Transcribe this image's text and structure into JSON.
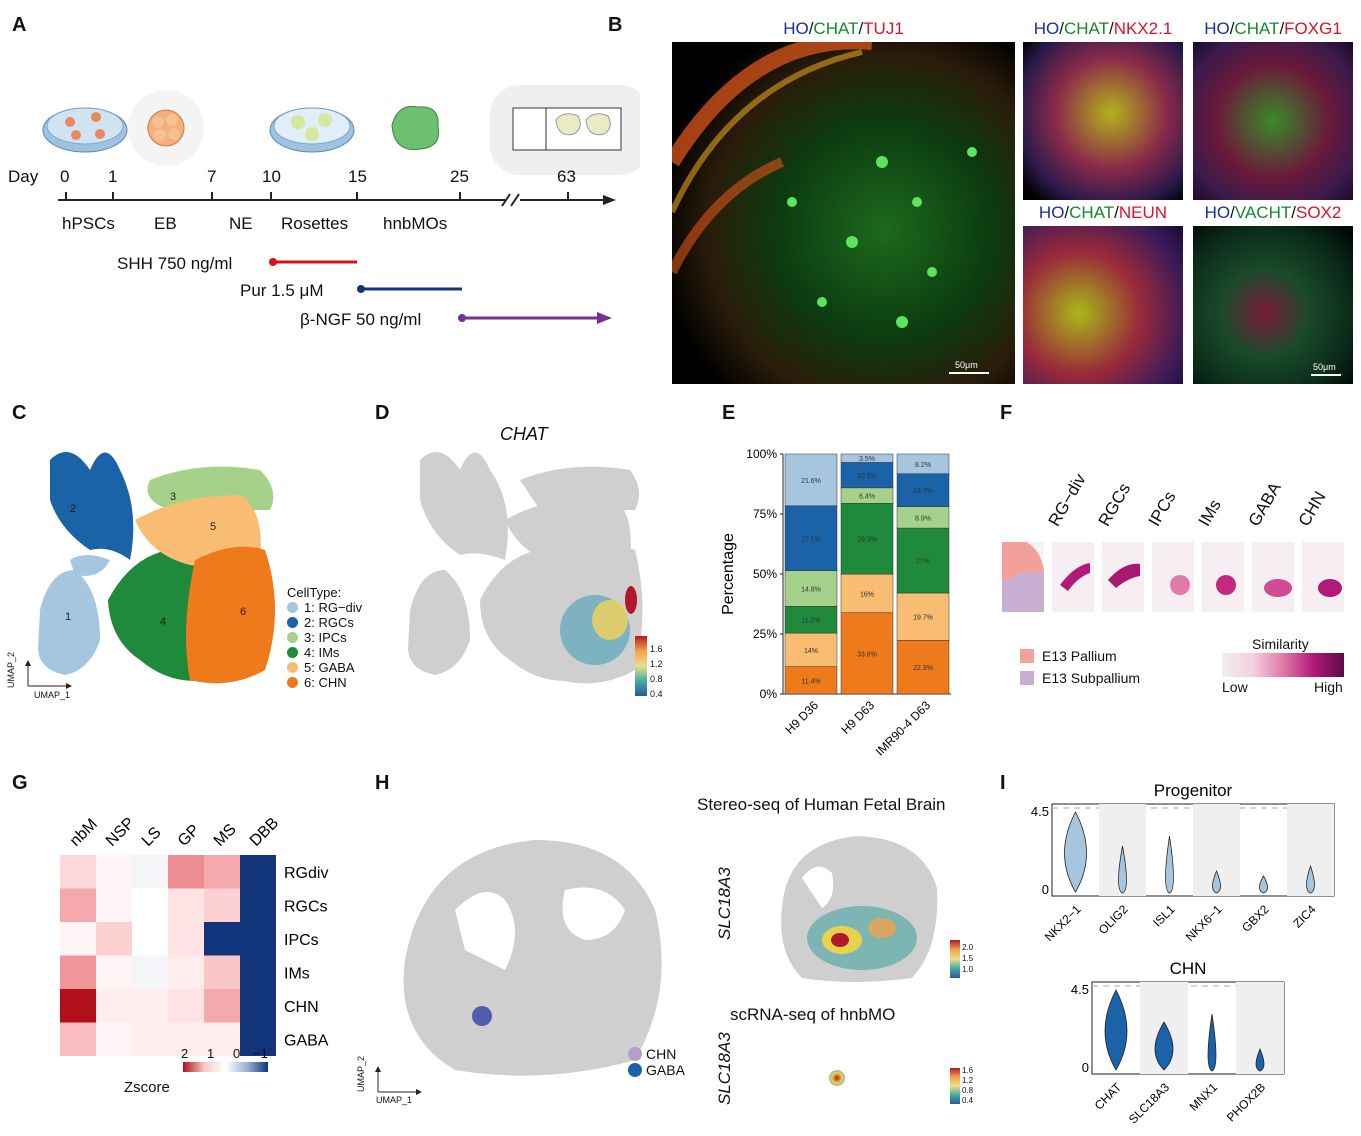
{
  "panels": {
    "A": "A",
    "B": "B",
    "C": "C",
    "D": "D",
    "E": "E",
    "F": "F",
    "G": "G",
    "H": "H",
    "I": "I"
  },
  "panelA": {
    "day_label": "Day",
    "days": [
      "0",
      "1",
      "7",
      "10",
      "15",
      "25",
      "63"
    ],
    "stages": [
      "hPSCs",
      "EB",
      "NE",
      "Rosettes",
      "hnbMOs"
    ],
    "treatments": [
      {
        "label": "SHH 750 ng/ml",
        "color": "#d4101a"
      },
      {
        "label": "Pur 1.5 μM",
        "color": "#12347a"
      },
      {
        "label": "β-NGF 50 ng/ml",
        "color": "#7a2f8e"
      }
    ]
  },
  "panelB": {
    "main": {
      "parts": [
        "HO",
        "/",
        "CHAT",
        "/",
        "TUJ1"
      ]
    },
    "p1": {
      "parts": [
        "HO",
        "/",
        "CHAT",
        "/",
        "NKX2.1"
      ]
    },
    "p2": {
      "parts": [
        "HO",
        "/",
        "CHAT",
        "/",
        "FOXG1"
      ]
    },
    "p3": {
      "parts": [
        "HO",
        "/",
        "CHAT",
        "/",
        "NEUN"
      ]
    },
    "p4": {
      "parts": [
        "HO",
        "/",
        "VACHT",
        "/",
        "SOX2"
      ]
    },
    "scale": "50μm"
  },
  "panelC": {
    "legend_title": "CellType:",
    "celltypes": [
      {
        "label": "1: RG−div",
        "color": "#a6c6df"
      },
      {
        "label": "2: RGCs",
        "color": "#1b63a8"
      },
      {
        "label": "3: IPCs",
        "color": "#a6d18a"
      },
      {
        "label": "4: IMs",
        "color": "#1f8a3b"
      },
      {
        "label": "5: GABA",
        "color": "#f8bc73"
      },
      {
        "label": "6: CHN",
        "color": "#ef7a1c"
      }
    ],
    "axis_x": "UMAP_1",
    "axis_y": "UMAP_2",
    "cluster_ids": [
      "1",
      "2",
      "3",
      "4",
      "5",
      "6"
    ]
  },
  "panelD": {
    "title": "CHAT",
    "colorbar_ticks": [
      "1.6",
      "1.2",
      "0.8",
      "0.4"
    ]
  },
  "chart_data": {
    "type": "bar",
    "stacked": true,
    "ylabel": "Percentage",
    "yticks": [
      "0%",
      "25%",
      "50%",
      "75%",
      "100%"
    ],
    "categories": [
      "H9 D36",
      "H9 D63",
      "IMR90-4 D63"
    ],
    "series": [
      {
        "name": "CHN",
        "color": "#ef7a1c",
        "values": [
          11.4,
          33.6,
          22.3
        ],
        "labels": [
          "11.4%",
          "33.6%",
          "22.3%"
        ]
      },
      {
        "name": "GABA",
        "color": "#f8bc73",
        "values": [
          14,
          16,
          19.7
        ],
        "labels": [
          "14%",
          "16%",
          "19.7%"
        ]
      },
      {
        "name": "IMs",
        "color": "#1f8a3b",
        "values": [
          11.2,
          29.3,
          27
        ],
        "labels": [
          "11.2%",
          "29.3%",
          "27%"
        ]
      },
      {
        "name": "IPCs",
        "color": "#a6d18a",
        "values": [
          14.8,
          6.4,
          8.9
        ],
        "labels": [
          "14.8%",
          "6.4%",
          "8.9%"
        ]
      },
      {
        "name": "RGCs",
        "color": "#1b63a8",
        "values": [
          27.1,
          10.5,
          13.7
        ],
        "labels": [
          "27.1%",
          "10.5%",
          "13.7%"
        ]
      },
      {
        "name": "RG-div",
        "color": "#a6c6df",
        "values": [
          21.6,
          3.5,
          8.2
        ],
        "labels": [
          "21.6%",
          "3.5%",
          "8.2%"
        ]
      }
    ]
  },
  "panelF": {
    "columns": [
      "RG−div",
      "RGCs",
      "IPCs",
      "IMs",
      "GABA",
      "CHN"
    ],
    "legend": [
      {
        "label": "E13 Pallium",
        "color": "#f2a09a"
      },
      {
        "label": "E13 Subpallium",
        "color": "#c9aed3"
      }
    ],
    "similarity_title": "Similarity",
    "low": "Low",
    "high": "High"
  },
  "panelG": {
    "columns": [
      "nbM",
      "NSP",
      "LS",
      "GP",
      "MS",
      "DBB"
    ],
    "rows": [
      "RGdiv",
      "RGCs",
      "IPCs",
      "IMs",
      "CHN",
      "GABA"
    ],
    "values": [
      [
        0.4,
        0.1,
        -0.1,
        1.2,
        0.9,
        -2
      ],
      [
        0.9,
        0.1,
        0,
        0.3,
        0.5,
        -2
      ],
      [
        0.1,
        0.5,
        0,
        0.3,
        -2,
        -2
      ],
      [
        1.1,
        0.1,
        -0.1,
        0.2,
        0.6,
        -2
      ],
      [
        2.5,
        0.2,
        0.2,
        0.3,
        0.9,
        -2
      ],
      [
        0.7,
        0.1,
        0.2,
        0.2,
        0.2,
        -2
      ]
    ],
    "zscore_label": "Zscore",
    "ticks": [
      "2",
      "1",
      "0",
      "−1"
    ]
  },
  "panelH": {
    "axis_x": "UMAP_1",
    "axis_y": "UMAP_2",
    "legend": [
      {
        "label": "CHN",
        "color": "#b79ccb"
      },
      {
        "label": "GABA",
        "color": "#1b63a8"
      }
    ],
    "stereo_title": "Stereo-seq of Human Fetal Brain",
    "sc_title": "scRNA-seq of hnbMO",
    "gene": "SLC18A3",
    "stereo_ticks": [
      "2.0",
      "1.5",
      "1.0"
    ],
    "sc_ticks": [
      "1.6",
      "1.2",
      "0.8",
      "0.4"
    ]
  },
  "panelI": {
    "progenitor": {
      "title": "Progenitor",
      "ymax": "4.5",
      "ymin": "0",
      "genes": [
        "NKX2−1",
        "OLIG2",
        "ISL1",
        "NKX6−1",
        "GBX2",
        "ZIC4"
      ],
      "color": "#a6c6df"
    },
    "chn": {
      "title": "CHN",
      "ymax": "4.5",
      "ymin": "0",
      "genes": [
        "CHAT",
        "SLC18A3",
        "MNX1",
        "PHOX2B"
      ],
      "color": "#1b63a8"
    }
  }
}
